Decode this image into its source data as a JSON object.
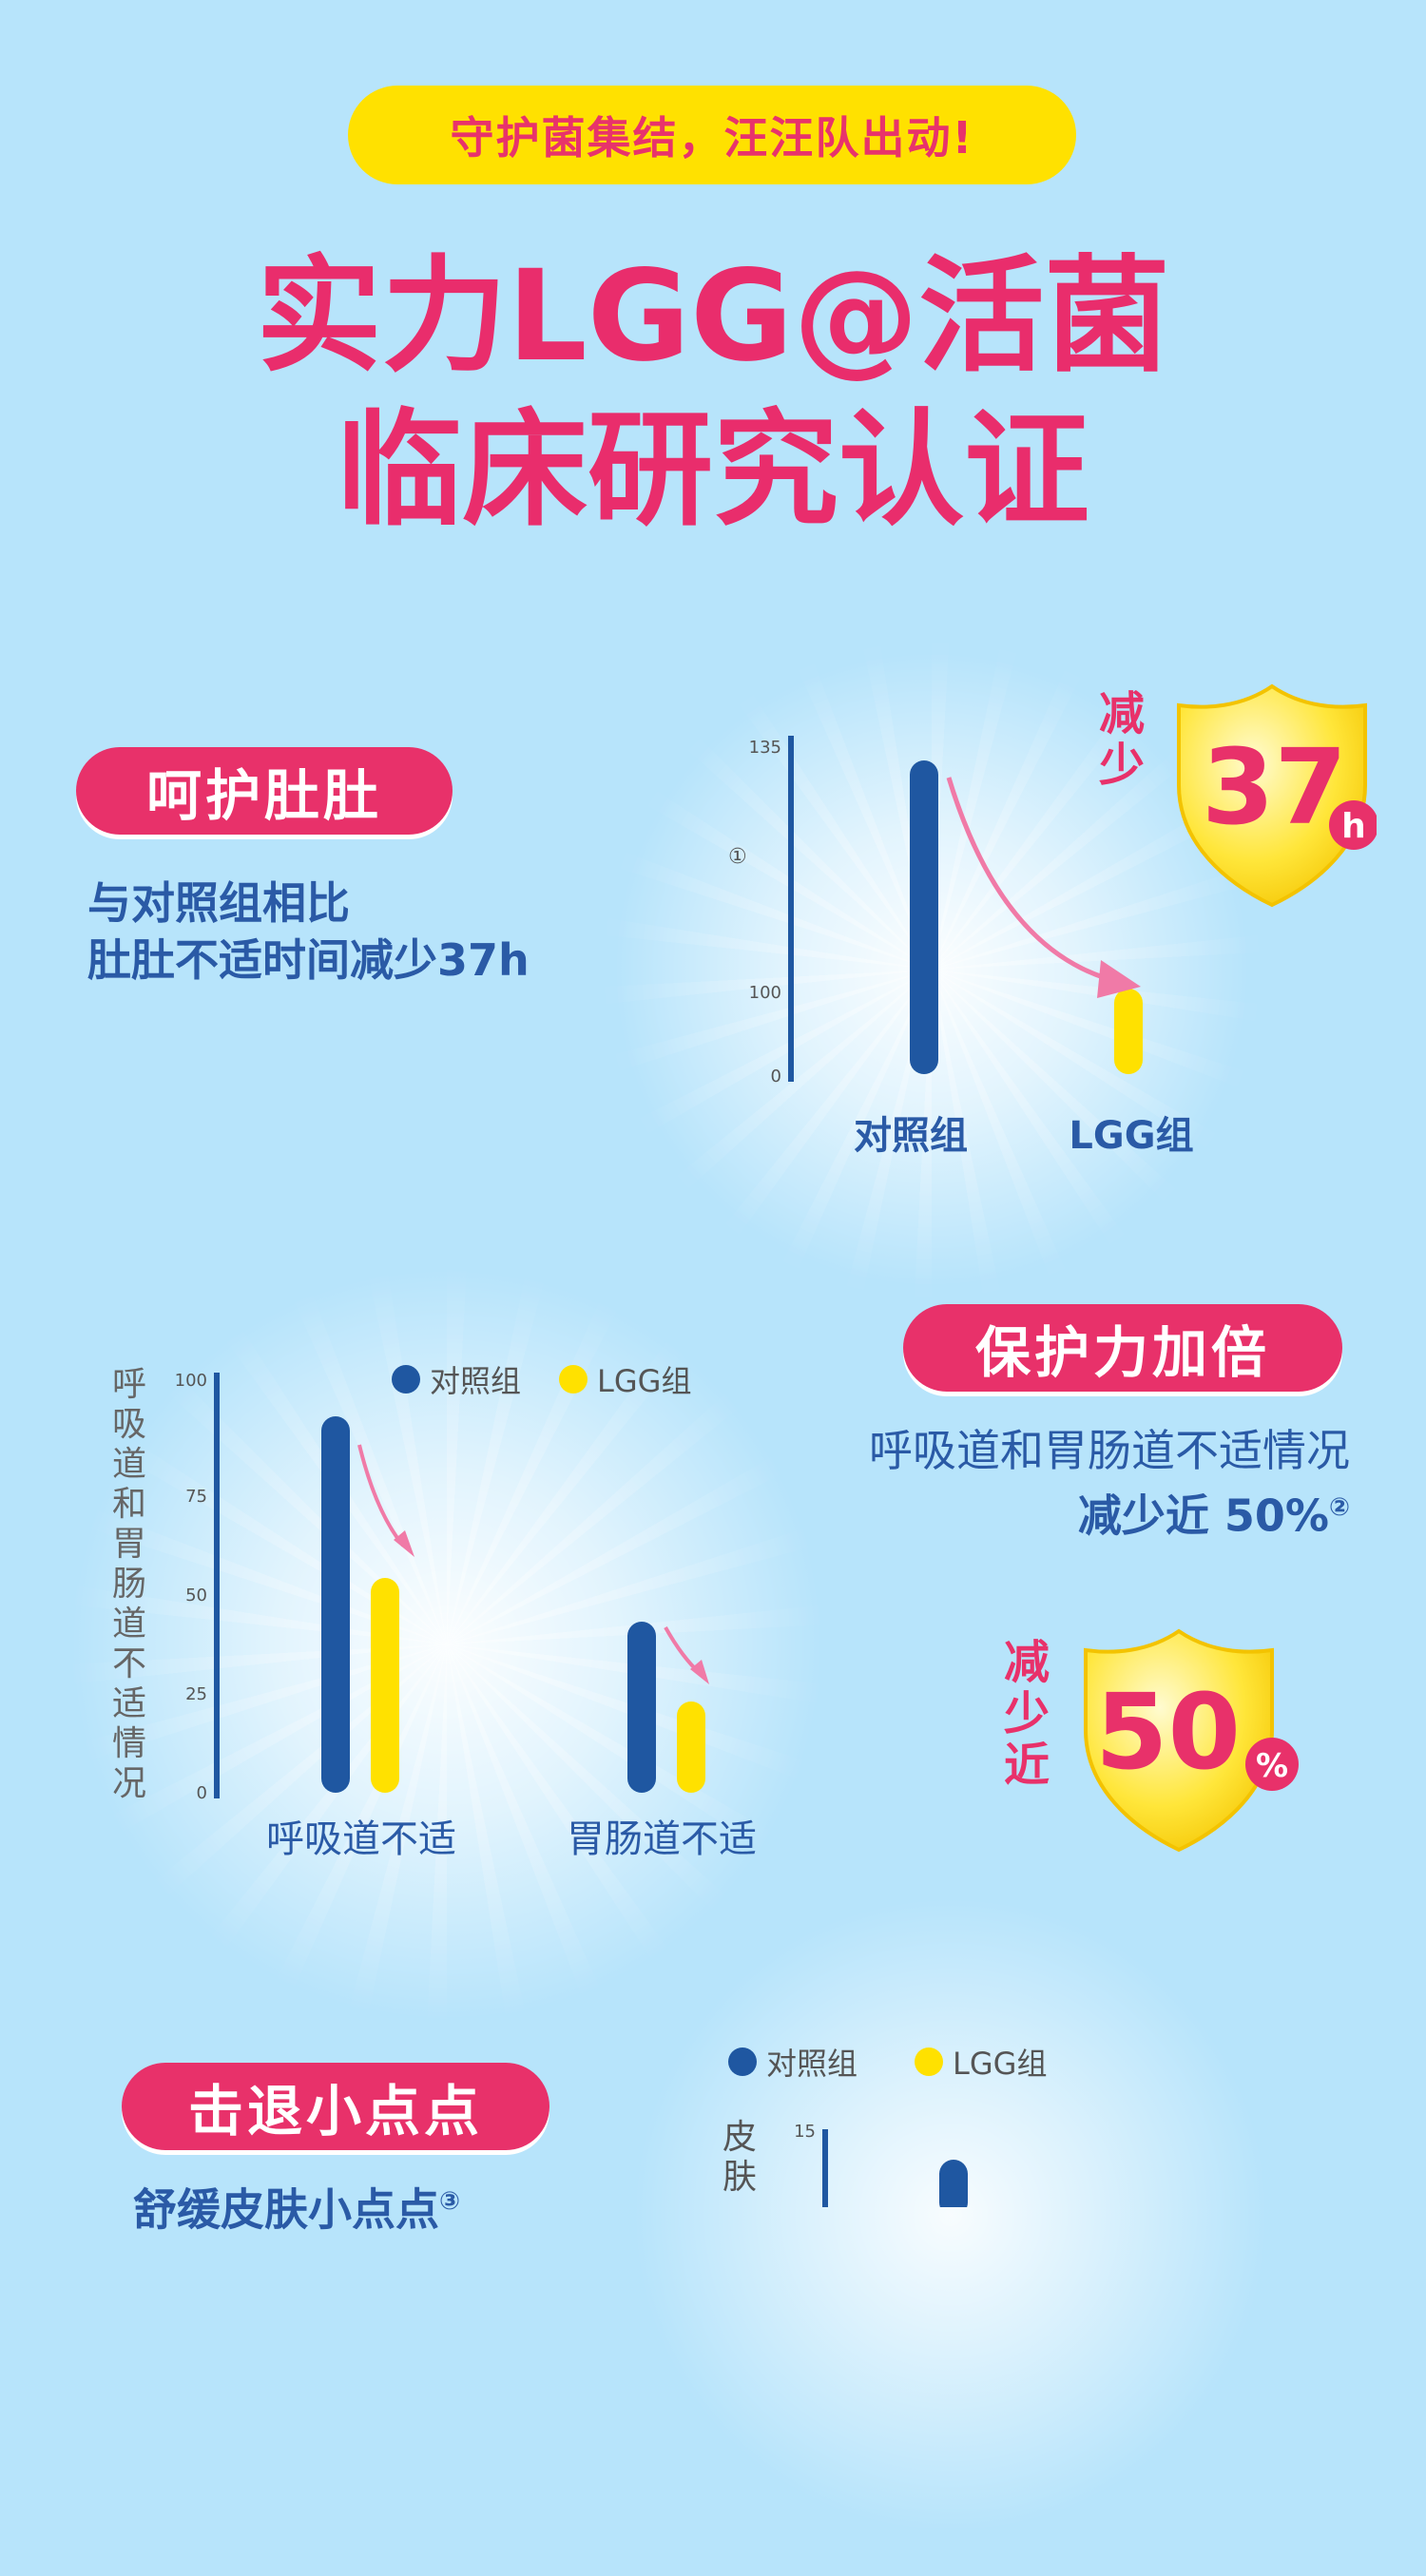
{
  "colors": {
    "accent_pink": "#e8316a",
    "accent_yellow": "#ffe100",
    "control_blue": "#1f57a1",
    "lgg_yellow": "#ffe100",
    "text_blue": "#2a5aa6",
    "background": "#b7e4fb"
  },
  "header": {
    "tagline": "守护菌集结，汪汪队出动!",
    "title_line1": "实力LGG@活菌",
    "title_line2": "临床研究认证"
  },
  "section1": {
    "pill": "呵护肚肚",
    "desc_line1": "与对照组相比",
    "desc_line2": "肚肚不适时间减少37h",
    "badge_label": "减少",
    "badge_value": "37",
    "badge_unit": "h",
    "footnote_mark": "①",
    "chart_data": {
      "type": "bar",
      "categories": [
        "对照组",
        "LGG组"
      ],
      "values": [
        135,
        98
      ],
      "tick_labels": [
        "135",
        "100",
        "0"
      ]
    }
  },
  "section2": {
    "pill": "保护力加倍",
    "desc_line1": "呼吸道和胃肠道不适情况",
    "desc_line2": "减少近 50%",
    "desc_sup": "②",
    "badge_label": "减少近",
    "badge_value": "50",
    "badge_unit": "%",
    "chart_data": {
      "type": "bar",
      "ylabel": "呼吸道和胃肠道不适情况",
      "ylim": [
        0,
        100
      ],
      "tick_labels": [
        "100",
        "75",
        "50",
        "25",
        "0"
      ],
      "categories": [
        "呼吸道不适",
        "胃肠道不适"
      ],
      "series": [
        {
          "name": "对照组",
          "values": [
            92,
            41
          ]
        },
        {
          "name": "LGG组",
          "values": [
            51,
            21
          ]
        }
      ]
    }
  },
  "section3": {
    "pill": "击退小点点",
    "desc_line1": "舒缓皮肤小点点",
    "desc_sup": "③",
    "legend": [
      "对照组",
      "LGG组"
    ],
    "ylabel": "皮肤",
    "tick_top": "15"
  }
}
